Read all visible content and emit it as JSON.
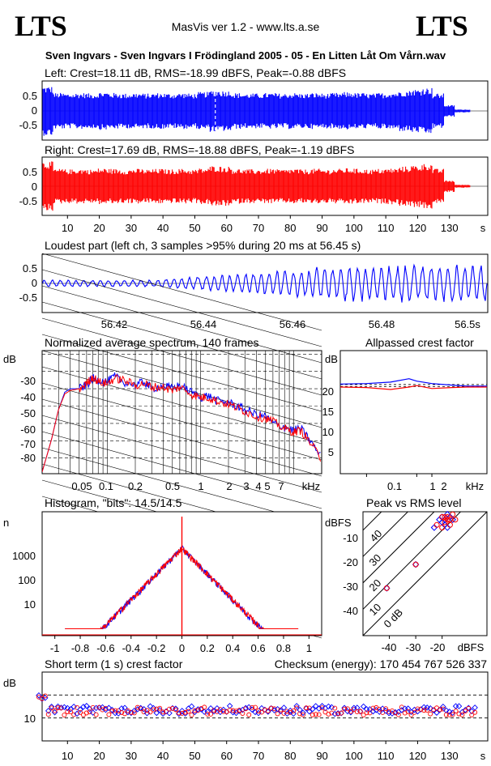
{
  "header": {
    "logo_left": "LTS",
    "logo_right": "LTS",
    "app_title": "MasVis ver 1.2 - www.lts.a.se",
    "file_title": "Sven Ingvars - Sven Ingvars I Frödingland 2005 - 05 - En Litten Låt Om Vårn.wav"
  },
  "colors": {
    "left": "#0000ff",
    "right": "#ff0000"
  },
  "chart_data": [
    {
      "id": "left_waveform",
      "type": "area",
      "title": "Left: Crest=18.11 dB, RMS=-18.99 dBFS, Peak=-0.88 dBFS",
      "ylim": [
        -1,
        1
      ],
      "yticks": [
        "0.5",
        "0",
        "-0.5"
      ],
      "xlim": [
        0,
        140
      ],
      "marker_x": 56.45,
      "envelope": [
        0.85,
        0.62,
        0.6,
        0.62,
        0.6,
        0.65,
        0.62,
        0.6,
        0.62,
        0.6,
        0.62,
        0.6,
        0.62,
        0.6,
        0.65,
        0.72,
        0.7,
        0.62,
        0.6,
        0.6,
        0.62,
        0.6,
        0.62,
        0.6,
        0.62,
        0.6,
        0.62,
        0.65,
        0.62,
        0.6,
        0.62,
        0.65,
        0.7,
        0.75,
        0.8,
        0.6,
        0.2,
        0.05
      ]
    },
    {
      "id": "right_waveform",
      "type": "area",
      "title": "Right: Crest=17.69 dB, RMS=-18.88 dBFS, Peak=-1.19 dBFS",
      "ylim": [
        -1,
        1
      ],
      "yticks": [
        "0.5",
        "0",
        "-0.5"
      ],
      "xlim": [
        0,
        140
      ],
      "xticks": [
        "10",
        "20",
        "30",
        "40",
        "50",
        "60",
        "70",
        "80",
        "90",
        "100",
        "110",
        "120",
        "130"
      ],
      "xunit": "s",
      "envelope": [
        0.85,
        0.6,
        0.58,
        0.6,
        0.58,
        0.62,
        0.6,
        0.58,
        0.6,
        0.58,
        0.6,
        0.58,
        0.6,
        0.58,
        0.62,
        0.7,
        0.68,
        0.6,
        0.58,
        0.58,
        0.6,
        0.58,
        0.6,
        0.58,
        0.6,
        0.58,
        0.6,
        0.62,
        0.6,
        0.58,
        0.6,
        0.62,
        0.68,
        0.72,
        0.78,
        0.6,
        0.2,
        0.05
      ]
    },
    {
      "id": "loudest_part",
      "type": "line",
      "title": "Loudest part (left  ch, 3 samples >95% during 20 ms at 56.45 s)",
      "ylim": [
        -1,
        1
      ],
      "yticks": [
        "0.5",
        "0",
        "-0.5"
      ],
      "xlim": [
        56.405,
        56.505
      ],
      "xticks": [
        "56.42",
        "56.44",
        "56.46",
        "56.48",
        "56.5s"
      ]
    },
    {
      "id": "spectrum",
      "type": "line",
      "title": "Normalized average spectrum, 140 frames",
      "ylabel": "dB",
      "yticks": [
        "-30",
        "-40",
        "-50",
        "-60",
        "-70",
        "-80"
      ],
      "ylim": [
        -89,
        -18
      ],
      "xlim": [
        0.02,
        20
      ],
      "xticks": [
        "0.05",
        "0.1",
        "0.2",
        "0.5",
        "1",
        "2",
        "3",
        "4",
        "5",
        "7"
      ],
      "xunit": "kHz",
      "series": [
        {
          "freq": [
            0.02,
            0.025,
            0.03,
            0.035,
            0.04,
            0.05,
            0.06,
            0.07,
            0.08,
            0.1,
            0.12,
            0.15,
            0.2,
            0.25,
            0.3,
            0.4,
            0.5,
            0.6,
            0.8,
            1,
            1.2,
            1.5,
            2,
            2.5,
            3,
            4,
            5,
            6,
            8,
            10,
            12,
            15,
            20
          ],
          "db": [
            -88,
            -70,
            -52,
            -42,
            -40,
            -40,
            -38,
            -34,
            -35,
            -36,
            -33,
            -36,
            -38,
            -36,
            -40,
            -38,
            -40,
            -38,
            -42,
            -45,
            -44,
            -47,
            -48,
            -50,
            -52,
            -55,
            -56,
            -60,
            -62,
            -64,
            -63,
            -70,
            -80
          ]
        },
        {
          "freq": [
            0.02,
            0.025,
            0.03,
            0.035,
            0.04,
            0.05,
            0.06,
            0.07,
            0.08,
            0.1,
            0.12,
            0.15,
            0.2,
            0.25,
            0.3,
            0.4,
            0.5,
            0.6,
            0.8,
            1,
            1.2,
            1.5,
            2,
            2.5,
            3,
            4,
            5,
            6,
            8,
            10,
            12,
            15,
            20
          ],
          "db": [
            -88,
            -70,
            -52,
            -43,
            -41,
            -40,
            -37,
            -33,
            -36,
            -37,
            -34,
            -35,
            -38,
            -37,
            -39,
            -39,
            -41,
            -39,
            -43,
            -45,
            -45,
            -47,
            -49,
            -51,
            -53,
            -56,
            -57,
            -59,
            -63,
            -65,
            -64,
            -71,
            -81
          ]
        }
      ]
    },
    {
      "id": "allpassed_crest",
      "type": "line",
      "title": "Allpassed crest factor",
      "ylabel": "dB",
      "yticks": [
        "20",
        "15",
        "10",
        "5"
      ],
      "ylim": [
        0,
        25
      ],
      "xlim": [
        0.03,
        25
      ],
      "xticks": [
        "0.1",
        "1",
        "2",
        "kHz"
      ],
      "series": [
        {
          "freq": [
            0.03,
            0.1,
            0.3,
            0.7,
            1,
            2,
            5,
            10,
            25
          ],
          "db": [
            18.2,
            18.3,
            18.6,
            19.3,
            18.8,
            18.3,
            18.0,
            17.8,
            17.8
          ]
        },
        {
          "freq": [
            0.03,
            0.1,
            0.3,
            0.7,
            1,
            2,
            5,
            10,
            25
          ],
          "db": [
            17.6,
            17.5,
            17.1,
            17.6,
            17.9,
            17.3,
            17.5,
            17.6,
            17.6
          ]
        }
      ]
    },
    {
      "id": "histogram",
      "type": "line",
      "title": "Histogram, \"bits\": 14.5/14.5",
      "ylabel": "n",
      "yticks": [
        "1000",
        "100",
        "10"
      ],
      "yscale": "log",
      "xlim": [
        -1.1,
        1.1
      ],
      "xticks": [
        "-1",
        "-0.8",
        "-0.6",
        "-0.4",
        "-0.2",
        "0",
        "0.2",
        "0.4",
        "0.6",
        "0.8",
        "1"
      ]
    },
    {
      "id": "peak_vs_rms",
      "type": "scatter",
      "title": "Peak vs RMS level",
      "ylabel": "dBFS",
      "yticks": [
        "-10",
        "-20",
        "-30",
        "-40"
      ],
      "xticks": [
        "-40",
        "-30",
        "-20",
        "dBFS"
      ],
      "diagonal_labels": [
        "40",
        "30",
        "20",
        "10",
        "0 dB"
      ],
      "ylim": [
        -50,
        -3
      ],
      "xlim": [
        -50,
        -3
      ],
      "left_points": [
        [
          -41,
          -32
        ],
        [
          -30,
          -23
        ],
        [
          -23,
          -9
        ],
        [
          -21,
          -6
        ],
        [
          -20,
          -5
        ],
        [
          -19,
          -6
        ],
        [
          -18,
          -4
        ],
        [
          -19,
          -8
        ],
        [
          -17,
          -5
        ],
        [
          -20,
          -7
        ],
        [
          -16,
          -6
        ],
        [
          -18,
          -9
        ]
      ],
      "right_points": [
        [
          -41,
          -32
        ],
        [
          -30,
          -23
        ],
        [
          -22,
          -8
        ],
        [
          -20,
          -5
        ],
        [
          -19,
          -7
        ],
        [
          -18,
          -5
        ],
        [
          -17,
          -6
        ],
        [
          -20,
          -9
        ],
        [
          -16,
          -4
        ],
        [
          -18,
          -6
        ],
        [
          -19,
          -5
        ],
        [
          -17,
          -8
        ],
        [
          -15,
          -6
        ]
      ]
    },
    {
      "id": "short_term_crest",
      "type": "scatter",
      "title": "Short term (1 s) crest factor",
      "checksum": "Checksum (energy):  170 454 767 526 337",
      "ylabel": "dB",
      "yticks": [
        "10"
      ],
      "ylim": [
        0,
        30
      ],
      "xlim": [
        0,
        140
      ],
      "xticks": [
        "10",
        "20",
        "30",
        "40",
        "50",
        "60",
        "70",
        "80",
        "90",
        "100",
        "110",
        "120",
        "130"
      ],
      "xunit": "s"
    }
  ]
}
